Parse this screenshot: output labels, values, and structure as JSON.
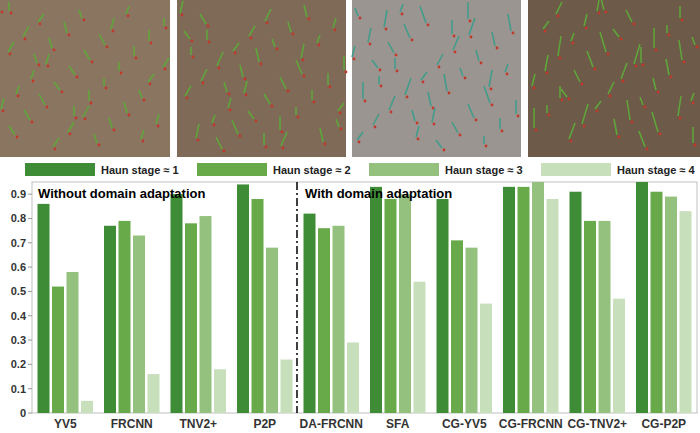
{
  "chart_data": {
    "type": "bar",
    "categories": [
      "YV5",
      "FRCNN",
      "TNV2+",
      "P2P",
      "DA-FRCNN",
      "SFA",
      "CG-YV5",
      "CG-FRCNN",
      "CG-TNV2+",
      "CG-P2P"
    ],
    "series": [
      {
        "name": "Haun stage ≈ 1",
        "color": "#3f8c36",
        "values": [
          0.86,
          0.77,
          0.9,
          0.94,
          0.82,
          0.93,
          0.88,
          0.93,
          0.91,
          0.95
        ]
      },
      {
        "name": "Haun stage ≈ 2",
        "color": "#68a94a",
        "values": [
          0.52,
          0.79,
          0.78,
          0.88,
          0.76,
          0.88,
          0.71,
          0.93,
          0.79,
          0.91
        ]
      },
      {
        "name": "Haun stage ≈ 3",
        "color": "#94c27e",
        "values": [
          0.58,
          0.73,
          0.81,
          0.68,
          0.77,
          0.9,
          0.68,
          0.95,
          0.79,
          0.89
        ]
      },
      {
        "name": "Haun stage ≈ 4",
        "color": "#c8dfbc",
        "values": [
          0.05,
          0.16,
          0.18,
          0.22,
          0.29,
          0.54,
          0.45,
          0.88,
          0.47,
          0.83
        ]
      }
    ],
    "annotations": [
      "Without domain adaptation",
      "With domain adaptation"
    ],
    "ylim": [
      0,
      0.95
    ],
    "yticks": [
      0,
      0.1,
      0.2,
      0.3,
      0.4,
      0.5,
      0.6,
      0.7,
      0.8,
      0.9
    ],
    "grid": false,
    "legend": "top"
  }
}
